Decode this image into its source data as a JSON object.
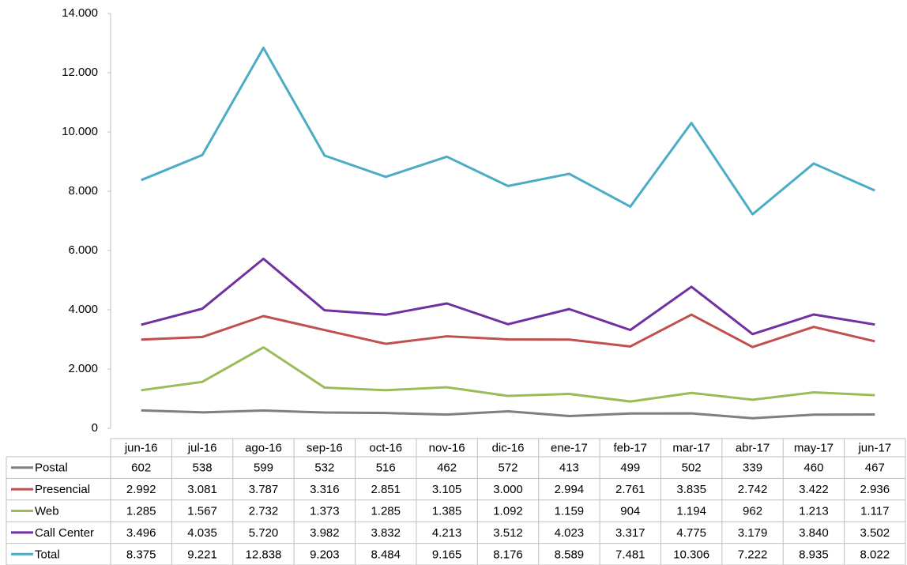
{
  "chart_data": {
    "type": "line",
    "categories": [
      "jun-16",
      "jul-16",
      "ago-16",
      "sep-16",
      "oct-16",
      "nov-16",
      "dic-16",
      "ene-17",
      "feb-17",
      "mar-17",
      "abr-17",
      "may-17",
      "jun-17"
    ],
    "series": [
      {
        "name": "Postal",
        "color": "#7f7f7f",
        "values": [
          602,
          538,
          599,
          532,
          516,
          462,
          572,
          413,
          499,
          502,
          339,
          460,
          467
        ]
      },
      {
        "name": "Presencial",
        "color": "#c0504d",
        "values": [
          2992,
          3081,
          3787,
          3316,
          2851,
          3105,
          3000,
          2994,
          2761,
          3835,
          2742,
          3422,
          2936
        ],
        "value_labels": [
          "2.992",
          "3.081",
          "3.787",
          "3.316",
          "2.851",
          "3.105",
          "3.000",
          "2.994",
          "2.761",
          "3.835",
          "2.742",
          "3.422",
          "2.936"
        ]
      },
      {
        "name": "Web",
        "color": "#9bbb59",
        "values": [
          1285,
          1567,
          2732,
          1373,
          1285,
          1385,
          1092,
          1159,
          904,
          1194,
          962,
          1213,
          1117
        ],
        "value_labels": [
          "1.285",
          "1.567",
          "2.732",
          "1.373",
          "1.285",
          "1.385",
          "1.092",
          "1.159",
          "904",
          "1.194",
          "962",
          "1.213",
          "1.117"
        ]
      },
      {
        "name": "Call Center",
        "color": "#7030a0",
        "values": [
          3496,
          4035,
          5720,
          3982,
          3832,
          4213,
          3512,
          4023,
          3317,
          4775,
          3179,
          3840,
          3502
        ],
        "value_labels": [
          "3.496",
          "4.035",
          "5.720",
          "3.982",
          "3.832",
          "4.213",
          "3.512",
          "4.023",
          "3.317",
          "4.775",
          "3.179",
          "3.840",
          "3.502"
        ]
      },
      {
        "name": "Total",
        "color": "#4bacc6",
        "values": [
          8375,
          9221,
          12838,
          9203,
          8484,
          9165,
          8176,
          8589,
          7481,
          10306,
          7222,
          8935,
          8022
        ],
        "value_labels": [
          "8.375",
          "9.221",
          "12.838",
          "9.203",
          "8.484",
          "9.165",
          "8.176",
          "8.589",
          "7.481",
          "10.306",
          "7.222",
          "8.935",
          "8.022"
        ]
      }
    ],
    "ylim": [
      0,
      14000
    ],
    "yticks": [
      0,
      {
        "value": 2000,
        "label": "2.000"
      },
      {
        "value": 4000,
        "label": "4.000"
      },
      {
        "value": 6000,
        "label": "6.000"
      },
      {
        "value": 8000,
        "label": "8.000"
      },
      {
        "value": 10000,
        "label": "10.000"
      },
      {
        "value": 12000,
        "label": "12.000"
      },
      {
        "value": 14000,
        "label": "14.000"
      }
    ],
    "grid": false
  }
}
